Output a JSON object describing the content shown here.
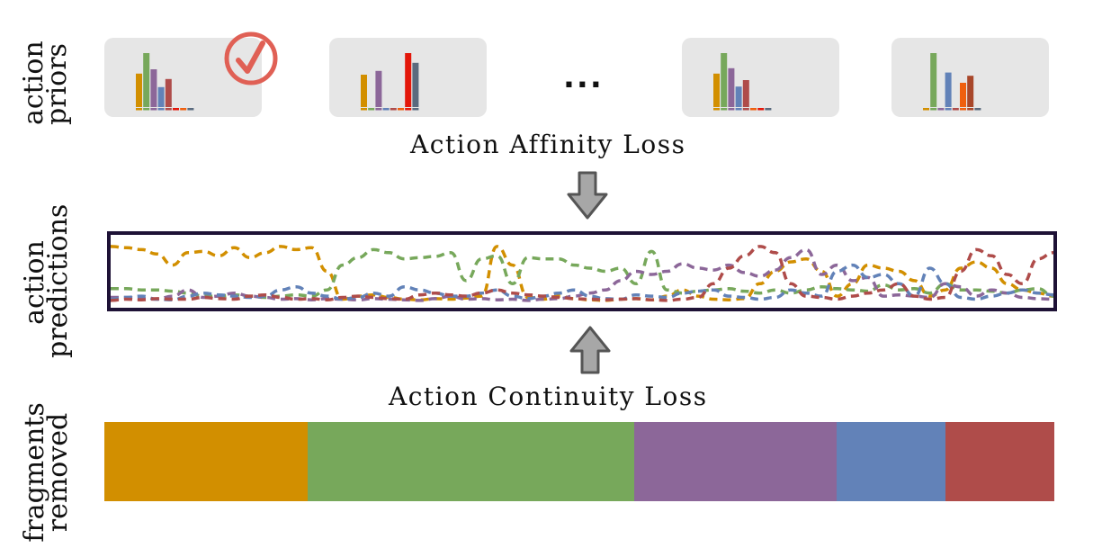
{
  "labels": {
    "priors": [
      "action",
      "priors"
    ],
    "predictions": [
      "action",
      "predictions"
    ],
    "fragments": [
      "fragments",
      "removed"
    ]
  },
  "losses": {
    "affinity": "Action Affinity Loss",
    "continuity": "Action Continuity Loss"
  },
  "ellipsis": "...",
  "colors": {
    "orange": "#d28f00",
    "green": "#77a85b",
    "purple": "#8c6799",
    "blue": "#6282b8",
    "red": "#af4c4a",
    "brightred": "#e3170a",
    "darkorange": "#ef5f0e",
    "slate": "#5a6a7e",
    "rust": "#a8472a",
    "check": "#e06055",
    "frame": "#1e1236",
    "arrow_fill": "#a7a7a7",
    "arrow_stroke": "#555555"
  },
  "prior_histograms": [
    {
      "selected": true,
      "bars": [
        {
          "color": "orange",
          "value": 0.62
        },
        {
          "color": "green",
          "value": 1.0
        },
        {
          "color": "purple",
          "value": 0.7
        },
        {
          "color": "blue",
          "value": 0.37
        },
        {
          "color": "red",
          "value": 0.52
        },
        {
          "color": "brightred",
          "value": 0.0
        },
        {
          "color": "darkorange",
          "value": 0.0
        },
        {
          "color": "slate",
          "value": 0.0
        }
      ]
    },
    {
      "selected": false,
      "bars": [
        {
          "color": "orange",
          "value": 0.6
        },
        {
          "color": "green",
          "value": 0.0
        },
        {
          "color": "purple",
          "value": 0.67
        },
        {
          "color": "blue",
          "value": 0.0
        },
        {
          "color": "red",
          "value": 0.0
        },
        {
          "color": "darkorange",
          "value": 0.0
        },
        {
          "color": "brightred",
          "value": 1.0
        },
        {
          "color": "slate",
          "value": 0.82
        }
      ]
    },
    {
      "selected": false,
      "bars": [
        {
          "color": "orange",
          "value": 0.62
        },
        {
          "color": "green",
          "value": 1.0
        },
        {
          "color": "purple",
          "value": 0.72
        },
        {
          "color": "blue",
          "value": 0.38
        },
        {
          "color": "red",
          "value": 0.5
        },
        {
          "color": "darkorange",
          "value": 0.0
        },
        {
          "color": "brightred",
          "value": 0.0
        },
        {
          "color": "slate",
          "value": 0.0
        }
      ]
    },
    {
      "selected": false,
      "bars": [
        {
          "color": "orange",
          "value": 0.0
        },
        {
          "color": "green",
          "value": 1.0
        },
        {
          "color": "purple",
          "value": 0.0
        },
        {
          "color": "blue",
          "value": 0.64
        },
        {
          "color": "red",
          "value": 0.0
        },
        {
          "color": "darkorange",
          "value": 0.45
        },
        {
          "color": "rust",
          "value": 0.58
        },
        {
          "color": "slate",
          "value": 0.0
        }
      ]
    }
  ],
  "prediction_series": [
    {
      "color": "orange",
      "values": [
        0.9,
        0.88,
        0.85,
        0.78,
        0.6,
        0.8,
        0.82,
        0.75,
        0.88,
        0.72,
        0.8,
        0.9,
        0.85,
        0.88,
        0.5,
        0.05,
        0.1,
        0.12,
        0.08,
        0.05,
        0.04,
        0.06,
        0.05,
        0.07,
        0.1,
        0.9,
        0.6,
        0.08,
        0.05,
        0.1,
        0.06,
        0.04,
        0.03,
        0.05,
        0.06,
        0.04,
        0.1,
        0.2,
        0.1,
        0.05,
        0.04,
        0.06,
        0.3,
        0.5,
        0.65,
        0.7,
        0.5,
        0.1,
        0.3,
        0.6,
        0.55,
        0.5,
        0.35,
        0.1,
        0.2,
        0.55,
        0.65,
        0.55,
        0.3,
        0.2,
        0.15,
        0.1
      ]
    },
    {
      "color": "green",
      "values": [
        0.22,
        0.22,
        0.2,
        0.2,
        0.18,
        0.15,
        0.1,
        0.1,
        0.12,
        0.1,
        0.08,
        0.1,
        0.12,
        0.1,
        0.2,
        0.6,
        0.72,
        0.85,
        0.8,
        0.7,
        0.72,
        0.74,
        0.8,
        0.35,
        0.7,
        0.75,
        0.3,
        0.72,
        0.7,
        0.7,
        0.6,
        0.55,
        0.5,
        0.55,
        0.3,
        0.82,
        0.2,
        0.15,
        0.18,
        0.2,
        0.22,
        0.18,
        0.15,
        0.2,
        0.15,
        0.2,
        0.25,
        0.22,
        0.2,
        0.18,
        0.28,
        0.2,
        0.22,
        0.15,
        0.3,
        0.2,
        0.2,
        0.18,
        0.15,
        0.2,
        0.22,
        0.1
      ]
    },
    {
      "color": "purple",
      "values": [
        0.08,
        0.08,
        0.06,
        0.05,
        0.1,
        0.2,
        0.08,
        0.1,
        0.15,
        0.1,
        0.08,
        0.05,
        0.06,
        0.04,
        0.06,
        0.05,
        0.04,
        0.06,
        0.05,
        0.04,
        0.03,
        0.06,
        0.1,
        0.05,
        0.06,
        0.04,
        0.05,
        0.03,
        0.05,
        0.06,
        0.1,
        0.15,
        0.2,
        0.35,
        0.5,
        0.45,
        0.5,
        0.62,
        0.55,
        0.52,
        0.6,
        0.48,
        0.42,
        0.52,
        0.72,
        0.85,
        0.45,
        0.6,
        0.35,
        0.4,
        0.1,
        0.12,
        0.1,
        0.08,
        0.3,
        0.25,
        0.1,
        0.2,
        0.15,
        0.08,
        0.06,
        0.05
      ]
    },
    {
      "color": "blue",
      "values": [
        0.05,
        0.08,
        0.1,
        0.05,
        0.04,
        0.1,
        0.15,
        0.12,
        0.1,
        0.08,
        0.1,
        0.2,
        0.25,
        0.15,
        0.1,
        0.05,
        0.08,
        0.15,
        0.1,
        0.25,
        0.2,
        0.15,
        0.1,
        0.1,
        0.15,
        0.2,
        0.1,
        0.06,
        0.1,
        0.15,
        0.2,
        0.1,
        0.06,
        0.05,
        0.12,
        0.1,
        0.08,
        0.15,
        0.18,
        0.2,
        0.1,
        0.08,
        0.05,
        0.08,
        0.2,
        0.15,
        0.1,
        0.5,
        0.6,
        0.4,
        0.45,
        0.3,
        0.1,
        0.55,
        0.3,
        0.08,
        0.05,
        0.1,
        0.15,
        0.2,
        0.15,
        0.12
      ]
    },
    {
      "color": "red",
      "values": [
        0.03,
        0.05,
        0.04,
        0.06,
        0.05,
        0.05,
        0.08,
        0.06,
        0.05,
        0.1,
        0.12,
        0.08,
        0.05,
        0.06,
        0.04,
        0.08,
        0.1,
        0.08,
        0.06,
        0.05,
        0.12,
        0.15,
        0.12,
        0.1,
        0.15,
        0.2,
        0.15,
        0.12,
        0.1,
        0.08,
        0.06,
        0.05,
        0.04,
        0.05,
        0.06,
        0.04,
        0.03,
        0.05,
        0.08,
        0.3,
        0.55,
        0.75,
        0.9,
        0.8,
        0.3,
        0.1,
        0.08,
        0.05,
        0.1,
        0.15,
        0.2,
        0.3,
        0.1,
        0.05,
        0.08,
        0.5,
        0.85,
        0.75,
        0.45,
        0.3,
        0.7,
        0.8
      ]
    }
  ],
  "fragments": [
    {
      "color": "orange",
      "fraction": 0.214
    },
    {
      "color": "green",
      "fraction": 0.344
    },
    {
      "color": "purple",
      "fraction": 0.213
    },
    {
      "color": "blue",
      "fraction": 0.114
    },
    {
      "color": "red",
      "fraction": 0.115
    }
  ]
}
